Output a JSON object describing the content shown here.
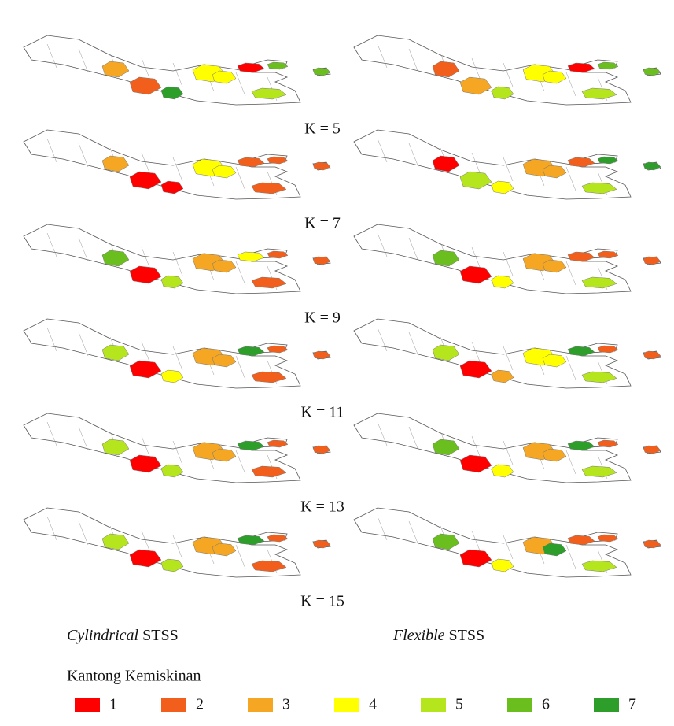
{
  "maps": [
    {
      "label": "K = 5",
      "cylindrical": [
        3,
        2,
        7,
        4,
        4,
        1,
        6,
        5,
        6
      ],
      "flexible": [
        2,
        3,
        5,
        4,
        4,
        1,
        6,
        5,
        6
      ]
    },
    {
      "label": "K = 7",
      "cylindrical": [
        3,
        1,
        1,
        4,
        4,
        2,
        2,
        2,
        2
      ],
      "flexible": [
        1,
        5,
        4,
        3,
        3,
        2,
        7,
        5,
        7
      ]
    },
    {
      "label": "K = 9",
      "cylindrical": [
        6,
        1,
        5,
        3,
        3,
        4,
        2,
        2,
        2
      ],
      "flexible": [
        6,
        1,
        4,
        3,
        3,
        2,
        2,
        5,
        2
      ]
    },
    {
      "label": "K = 11",
      "cylindrical": [
        5,
        1,
        4,
        3,
        3,
        7,
        2,
        2,
        2
      ],
      "flexible": [
        5,
        1,
        3,
        4,
        4,
        7,
        2,
        5,
        2
      ]
    },
    {
      "label": "K = 13",
      "cylindrical": [
        5,
        1,
        5,
        3,
        3,
        7,
        2,
        2,
        2
      ],
      "flexible": [
        6,
        1,
        4,
        3,
        3,
        7,
        2,
        5,
        2
      ]
    },
    {
      "label": "K = 15",
      "cylindrical": [
        5,
        1,
        5,
        3,
        3,
        7,
        2,
        2,
        2
      ],
      "flexible": [
        6,
        1,
        4,
        3,
        7,
        2,
        2,
        5,
        2
      ]
    }
  ],
  "column_titles": [
    {
      "italic": "Cylindrical",
      "rest": "STSS"
    },
    {
      "italic": "Flexible",
      "rest": "STSS"
    }
  ],
  "legend": {
    "title": "Kantong Kemiskinan",
    "items": [
      {
        "label": "1",
        "color": "#ff0000"
      },
      {
        "label": "2",
        "color": "#f25f1c"
      },
      {
        "label": "3",
        "color": "#f5a623"
      },
      {
        "label": "4",
        "color": "#ffff00"
      },
      {
        "label": "5",
        "color": "#b5e61d"
      },
      {
        "label": "6",
        "color": "#6abf1f"
      },
      {
        "label": "7",
        "color": "#2e9e2b"
      }
    ]
  }
}
